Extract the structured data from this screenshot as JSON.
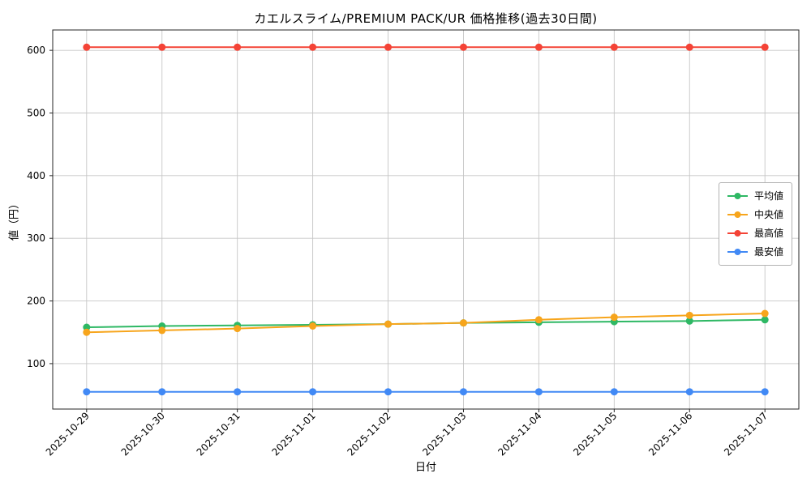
{
  "chart_data": {
    "type": "line",
    "title": "カエルスライム/PREMIUM PACK/UR 価格推移(過去30日間)",
    "xlabel": "日付",
    "ylabel": "値（円）",
    "x": [
      "2025-10-29",
      "2025-10-30",
      "2025-10-31",
      "2025-11-01",
      "2025-11-02",
      "2025-11-03",
      "2025-11-04",
      "2025-11-05",
      "2025-11-06",
      "2025-11-07"
    ],
    "series": [
      {
        "name": "平均値",
        "color": "#2eb864",
        "values": [
          158,
          160,
          161,
          162,
          163,
          165,
          166,
          167,
          168,
          170
        ]
      },
      {
        "name": "中央値",
        "color": "#f7a51c",
        "values": [
          150,
          153,
          156,
          160,
          163,
          165,
          170,
          174,
          177,
          180
        ]
      },
      {
        "name": "最高値",
        "color": "#f44336",
        "values": [
          605,
          605,
          605,
          605,
          605,
          605,
          605,
          605,
          605,
          605
        ]
      },
      {
        "name": "最安値",
        "color": "#4189f5",
        "values": [
          55,
          55,
          55,
          55,
          55,
          55,
          55,
          55,
          55,
          55
        ]
      }
    ],
    "yticks": [
      100,
      200,
      300,
      400,
      500,
      600
    ],
    "ylim": [
      27.5,
      632.5
    ],
    "grid": true,
    "legend_position": "center-right",
    "line_width": 2,
    "marker_radius": 4.5
  }
}
